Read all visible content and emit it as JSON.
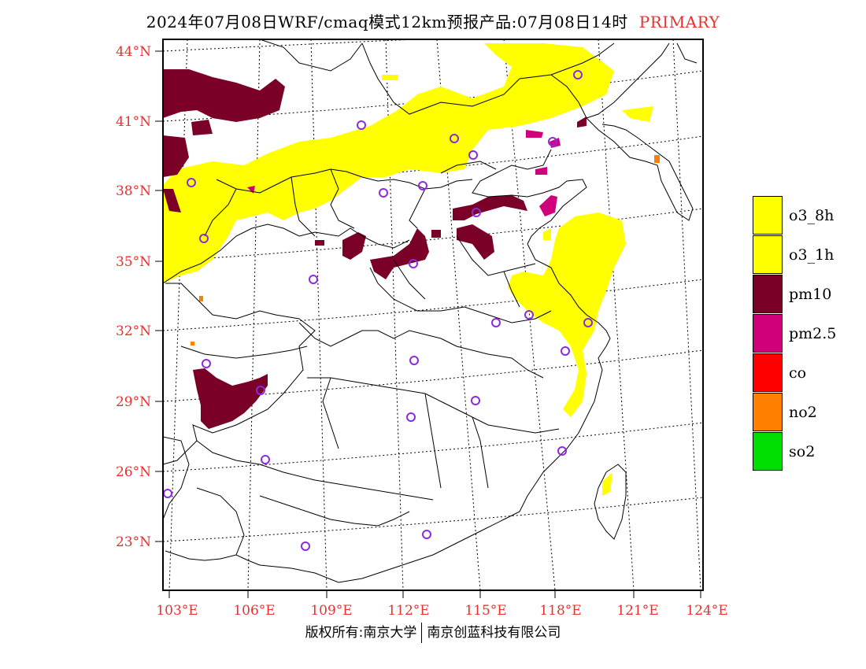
{
  "title": {
    "text": "2024年07月08日WRF/cmaq模式12km预报产品:07月08日14时",
    "tag": "PRIMARY"
  },
  "axes": {
    "lat_labels": [
      "44°N",
      "41°N",
      "38°N",
      "35°N",
      "32°N",
      "29°N",
      "26°N",
      "23°N"
    ],
    "lon_labels": [
      "103°E",
      "106°E",
      "109°E",
      "112°E",
      "115°E",
      "118°E",
      "121°E",
      "124°E"
    ]
  },
  "legend": [
    {
      "label": "o3_8h",
      "color": "#ffff00"
    },
    {
      "label": "o3_1h",
      "color": "#ffff00"
    },
    {
      "label": "pm10",
      "color": "#7a0028"
    },
    {
      "label": "pm2.5",
      "color": "#d0007a"
    },
    {
      "label": "co",
      "color": "#ff0000"
    },
    {
      "label": "no2",
      "color": "#ff7f00"
    },
    {
      "label": "so2",
      "color": "#00dd00"
    }
  ],
  "footer": {
    "left": "版权所有:南京大学",
    "right": "南京创蓝科技有限公司"
  },
  "colors": {
    "axis_label": "#e83030",
    "station_marker": "#8a2be2",
    "border": "#000000"
  }
}
